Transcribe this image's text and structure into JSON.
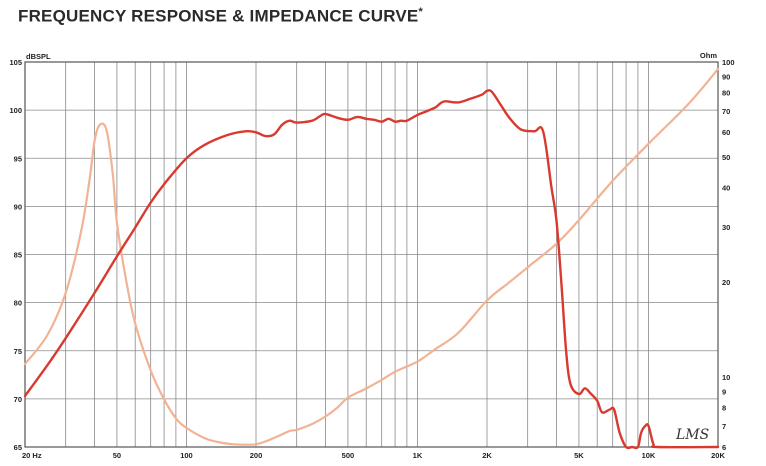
{
  "title": "FREQUENCY RESPONSE & IMPEDANCE CURVE",
  "title_mark": "*",
  "watermark": "LMS",
  "colors": {
    "spl": "#d93a2f",
    "impedance": "#f2b394",
    "grid": "#8a8a8a",
    "frame": "#555555"
  },
  "chart_data": {
    "type": "line",
    "title": "FREQUENCY RESPONSE & IMPEDANCE CURVE",
    "xscale": "log",
    "xlim": [
      20,
      20000
    ],
    "ylim_left": [
      65,
      105
    ],
    "ylim_right": [
      6,
      100
    ],
    "yscale_right": "log",
    "ylabel_left": "dBSPL",
    "ylabel_right": "Ohm",
    "x_tick_labels": [
      {
        "v": 20,
        "t": "20  Hz"
      },
      {
        "v": 50,
        "t": "50"
      },
      {
        "v": 100,
        "t": "100"
      },
      {
        "v": 200,
        "t": "200"
      },
      {
        "v": 500,
        "t": "500"
      },
      {
        "v": 1000,
        "t": "1K"
      },
      {
        "v": 2000,
        "t": "2K"
      },
      {
        "v": 5000,
        "t": "5K"
      },
      {
        "v": 10000,
        "t": "10K"
      },
      {
        "v": 20000,
        "t": "20K"
      }
    ],
    "y_left_ticks": [
      65,
      70,
      75,
      80,
      85,
      90,
      95,
      100,
      105
    ],
    "y_right_ticks": [
      6,
      7,
      8,
      9,
      10,
      20,
      30,
      40,
      50,
      60,
      70,
      80,
      90,
      100
    ],
    "grid": true,
    "series": [
      {
        "key": "spl",
        "axis": "left",
        "x": [
          20,
          25,
          30,
          40,
          50,
          60,
          70,
          80,
          100,
          120,
          150,
          180,
          200,
          220,
          240,
          260,
          280,
          300,
          350,
          380,
          400,
          450,
          500,
          550,
          600,
          650,
          700,
          750,
          800,
          850,
          900,
          1000,
          1100,
          1200,
          1300,
          1500,
          1700,
          1900,
          2000,
          2100,
          2300,
          2500,
          2800,
          3200,
          3500,
          3800,
          4000,
          4200,
          4400,
          4600,
          5000,
          5300,
          5600,
          6000,
          6300,
          6800,
          7100,
          7500,
          8000,
          8500,
          9000,
          9300,
          9700,
          10000,
          10500,
          11000,
          20000
        ],
        "y": [
          70.3,
          73.5,
          76.3,
          81.0,
          84.8,
          87.8,
          90.4,
          92.3,
          95.0,
          96.4,
          97.4,
          97.8,
          97.7,
          97.3,
          97.5,
          98.5,
          98.9,
          98.7,
          98.9,
          99.4,
          99.6,
          99.2,
          99.0,
          99.3,
          99.1,
          99.0,
          98.8,
          99.1,
          98.8,
          98.9,
          98.9,
          99.5,
          99.9,
          100.3,
          100.9,
          100.8,
          101.2,
          101.6,
          102.0,
          101.9,
          100.5,
          99.2,
          98.0,
          97.8,
          97.8,
          92.0,
          88.5,
          82.0,
          75.0,
          71.5,
          70.5,
          71.1,
          70.6,
          69.8,
          68.6,
          68.9,
          68.9,
          66.5,
          65.0,
          65.0,
          65.0,
          66.5,
          67.2,
          67.2,
          65.3,
          65.0,
          65.0
        ]
      },
      {
        "key": "impedance",
        "axis": "right",
        "x": [
          20,
          25,
          30,
          35,
          38,
          40,
          42,
          45,
          48,
          50,
          55,
          60,
          70,
          80,
          90,
          100,
          120,
          140,
          160,
          180,
          200,
          220,
          250,
          280,
          300,
          350,
          400,
          450,
          500,
          600,
          700,
          800,
          1000,
          1200,
          1500,
          2000,
          2500,
          3000,
          4000,
          5000,
          7000,
          10000,
          15000,
          20000
        ],
        "y": [
          11.0,
          13.6,
          18.5,
          29.0,
          42.0,
          56.0,
          63.0,
          61.0,
          44.0,
          31.0,
          20.0,
          14.8,
          10.5,
          8.5,
          7.4,
          6.9,
          6.4,
          6.2,
          6.12,
          6.1,
          6.12,
          6.25,
          6.5,
          6.75,
          6.8,
          7.1,
          7.5,
          8.0,
          8.6,
          9.2,
          9.8,
          10.4,
          11.2,
          12.3,
          13.8,
          17.5,
          20.0,
          22.3,
          26.5,
          31.5,
          42.0,
          55.0,
          74.0,
          95.0
        ]
      }
    ]
  }
}
